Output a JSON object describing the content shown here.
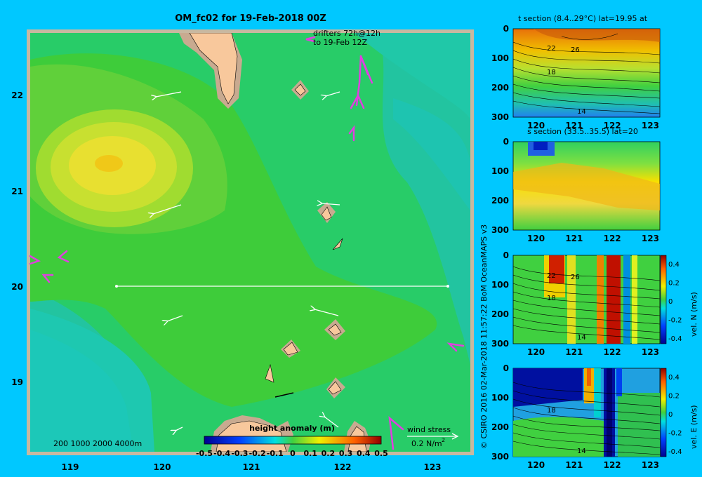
{
  "map": {
    "title": "OM_fc02 for 19-Feb-2018 00Z",
    "drifters_line1": "drifters 72h@12h",
    "drifters_line2": "to 19-Feb 12Z",
    "lat_ticks": [
      "22",
      "21",
      "20",
      "19"
    ],
    "lon_ticks": [
      "119",
      "120",
      "121",
      "122",
      "123"
    ],
    "depth_legend": "200  1000  2000  4000m",
    "wind_stress_label": "wind stress",
    "wind_stress_value": "0.2 N/m",
    "wind_stress_exp": "2",
    "colorbar_title": "height anomaly  (m)",
    "colorbar_ticks": [
      "-0.5",
      "-0.4",
      "-0.3",
      "-0.2",
      "-0.1",
      "0",
      "0.1",
      "0.2",
      "0.3",
      "0.4",
      "0.5"
    ],
    "colors": {
      "land": "#f8c89c",
      "shelf": "#c8aa90",
      "frame": "#c8b8a0"
    }
  },
  "copyright": "© CSIRO 2016   02-Mar-2018 11:57:22 BoM OceanMAPS v3",
  "panels": {
    "t_section": {
      "title": "t section (8.4..29°C) lat=19.95 at",
      "contour_labels": [
        "22",
        "26",
        "18",
        "14"
      ]
    },
    "s_section": {
      "title": "s section (33.5..35.5) lat=20"
    },
    "v_north": {
      "contour_labels": [
        "22",
        "26",
        "18",
        "14"
      ],
      "cb_label": "vel. N  (m/s)"
    },
    "v_east": {
      "contour_labels": [
        "18",
        "14"
      ],
      "cb_label": "vel. E  (m/s)"
    },
    "y_ticks": [
      "0",
      "100",
      "200",
      "300"
    ],
    "x_ticks": [
      "120",
      "121",
      "122",
      "123"
    ],
    "cb_ticks": [
      "0.4",
      "0.2",
      "0",
      "-0.2",
      "-0.4"
    ]
  }
}
